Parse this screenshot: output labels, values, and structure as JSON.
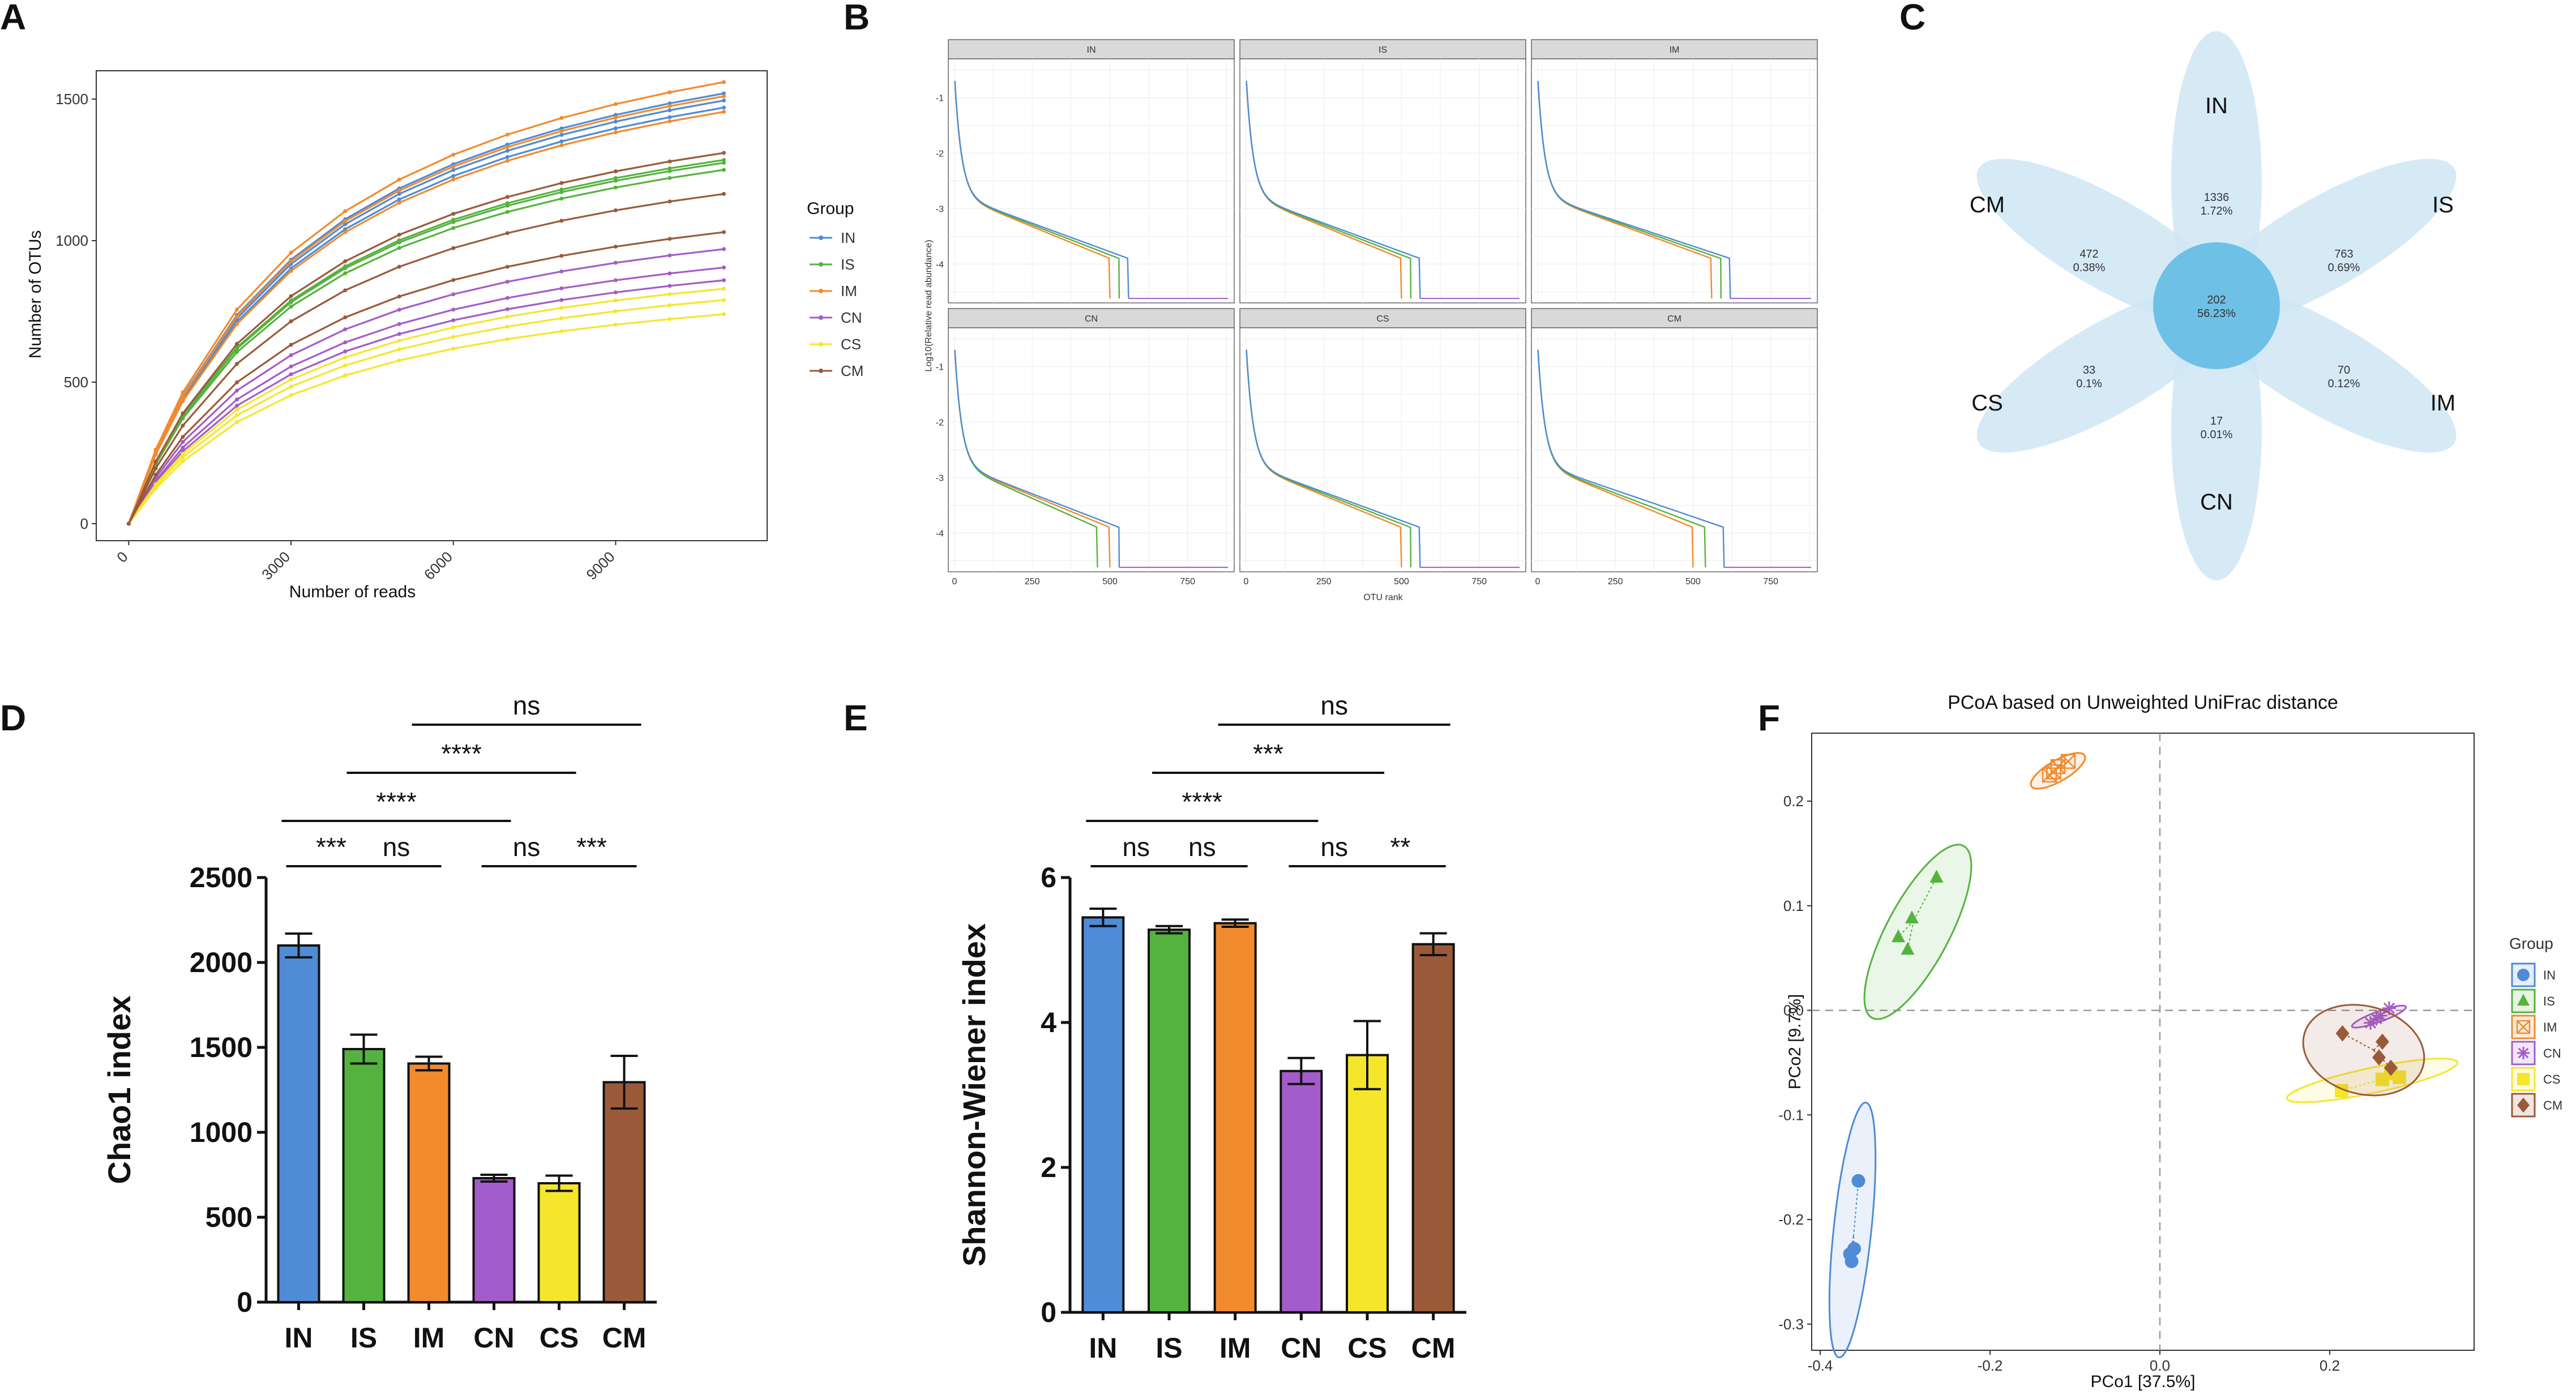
{
  "colors": {
    "IN": "#4F8BD6",
    "IS": "#54B33E",
    "IM": "#F28A2E",
    "CN": "#A35CC9",
    "CS": "#F5E62C",
    "CM": "#9A5A3A"
  },
  "panels": {
    "a": "A",
    "b": "B",
    "c": "C",
    "d": "D",
    "e": "E",
    "f": "F"
  },
  "chart_data": [
    {
      "id": "A",
      "type": "line",
      "xlabel": "Number of reads",
      "ylabel": "Number of OTUs",
      "xlim": [
        -600,
        11800
      ],
      "ylim": [
        -60,
        1600
      ],
      "x_ticks": [
        0,
        3000,
        6000,
        9000
      ],
      "y_ticks": [
        0,
        500,
        1000,
        1500
      ],
      "legend_title": "Group",
      "legend": [
        "IN",
        "IS",
        "IM",
        "CN",
        "CS",
        "CM"
      ],
      "x": [
        0,
        500,
        1000,
        2000,
        3000,
        4000,
        5000,
        6000,
        7000,
        8000,
        9000,
        10000,
        11000
      ],
      "series": [
        {
          "group": "IN",
          "final": 1470
        },
        {
          "group": "IN",
          "final": 1495
        },
        {
          "group": "IN",
          "final": 1520
        },
        {
          "group": "IS",
          "final": 1250
        },
        {
          "group": "IS",
          "final": 1275
        },
        {
          "group": "IS",
          "final": 1285
        },
        {
          "group": "IM",
          "final": 1455
        },
        {
          "group": "IM",
          "final": 1510
        },
        {
          "group": "IM",
          "final": 1560
        },
        {
          "group": "CN",
          "final": 860
        },
        {
          "group": "CN",
          "final": 905
        },
        {
          "group": "CN",
          "final": 970
        },
        {
          "group": "CS",
          "final": 740
        },
        {
          "group": "CS",
          "final": 790
        },
        {
          "group": "CS",
          "final": 830
        },
        {
          "group": "CM",
          "final": 1030
        },
        {
          "group": "CM",
          "final": 1165
        },
        {
          "group": "CM",
          "final": 1310
        }
      ]
    },
    {
      "id": "B",
      "type": "line",
      "xlabel": "OTU rank",
      "ylabel": "Log10(Relative read abundance)",
      "xlim": [
        -20,
        900
      ],
      "ylim": [
        -4.7,
        -0.3
      ],
      "x_ticks": [
        0,
        250,
        500,
        750
      ],
      "y_ticks": [
        -1,
        -2,
        -3,
        -4
      ],
      "facets": [
        {
          "label": "IN",
          "ends": [
            500,
            530,
            560
          ]
        },
        {
          "label": "IS",
          "ends": [
            500,
            530,
            560
          ]
        },
        {
          "label": "IM",
          "ends": [
            560,
            590,
            620
          ]
        },
        {
          "label": "CN",
          "ends": [
            500,
            460,
            530
          ]
        },
        {
          "label": "CS",
          "ends": [
            500,
            530,
            560
          ]
        },
        {
          "label": "CM",
          "ends": [
            500,
            540,
            600
          ]
        }
      ],
      "line_colors": [
        "#F28A2E",
        "#54B33E",
        "#4F8BD6",
        "#A35CC9"
      ]
    },
    {
      "id": "C",
      "type": "diagram",
      "center": {
        "count": "202",
        "pct": "56.23%"
      },
      "petals": [
        {
          "name": "IN",
          "count": "1336",
          "pct": "1.72%"
        },
        {
          "name": "IS",
          "count": "763",
          "pct": "0.69%"
        },
        {
          "name": "IM",
          "count": "70",
          "pct": "0.12%"
        },
        {
          "name": "CN",
          "count": "17",
          "pct": "0.01%"
        },
        {
          "name": "CS",
          "count": "33",
          "pct": "0.1%"
        },
        {
          "name": "CM",
          "count": "472",
          "pct": "0.38%"
        }
      ]
    },
    {
      "id": "D",
      "type": "bar",
      "ylabel": "Chao1 index",
      "categories": [
        "IN",
        "IS",
        "IM",
        "CN",
        "CS",
        "CM"
      ],
      "values": [
        2100,
        1490,
        1405,
        730,
        700,
        1295
      ],
      "errors": [
        70,
        85,
        40,
        20,
        45,
        155
      ],
      "ylim": [
        0,
        2500
      ],
      "y_ticks": [
        0,
        500,
        1000,
        1500,
        2000,
        2500
      ],
      "comparisons": [
        {
          "from": 0,
          "to": 1,
          "label": "***"
        },
        {
          "from": 1,
          "to": 2,
          "label": "ns"
        },
        {
          "from": 3,
          "to": 4,
          "label": "ns"
        },
        {
          "from": 4,
          "to": 5,
          "label": "***"
        },
        {
          "from": 0,
          "to": 3,
          "label": "****"
        },
        {
          "from": 1,
          "to": 4,
          "label": "****"
        },
        {
          "from": 2,
          "to": 5,
          "label": "ns"
        }
      ]
    },
    {
      "id": "E",
      "type": "bar",
      "ylabel": "Shannon-Wiener index",
      "categories": [
        "IN",
        "IS",
        "IM",
        "CN",
        "CS",
        "CM"
      ],
      "values": [
        5.45,
        5.28,
        5.37,
        3.33,
        3.55,
        5.08
      ],
      "errors": [
        0.12,
        0.05,
        0.05,
        0.18,
        0.47,
        0.15
      ],
      "ylim": [
        0,
        6
      ],
      "y_ticks": [
        0,
        2,
        4,
        6
      ],
      "comparisons": [
        {
          "from": 0,
          "to": 1,
          "label": "ns"
        },
        {
          "from": 1,
          "to": 2,
          "label": "ns"
        },
        {
          "from": 3,
          "to": 4,
          "label": "ns"
        },
        {
          "from": 4,
          "to": 5,
          "label": "**"
        },
        {
          "from": 0,
          "to": 3,
          "label": "****"
        },
        {
          "from": 1,
          "to": 4,
          "label": "***"
        },
        {
          "from": 2,
          "to": 5,
          "label": "ns"
        }
      ]
    },
    {
      "id": "F",
      "type": "scatter",
      "title": "PCoA based on Unweighted UniFrac distance",
      "xlabel": "PCo1 [37.5%]",
      "ylabel": "PCo2 [9.7%]",
      "xlim": [
        -0.41,
        0.37
      ],
      "ylim": [
        -0.325,
        0.265
      ],
      "x_ticks": [
        -0.4,
        -0.2,
        0.0,
        0.2
      ],
      "y_ticks": [
        0.2,
        0.1,
        0.0,
        -0.1,
        -0.2,
        -0.3
      ],
      "x_tick_labels": [
        "-0.4",
        "-0.2",
        "0.0",
        "0.2"
      ],
      "y_tick_labels": [
        "0.2",
        "0.1",
        "0.0",
        "-0.1",
        "-0.2",
        "-0.3"
      ],
      "legend_title": "Group",
      "legend": [
        "IN",
        "IS",
        "IM",
        "CN",
        "CS",
        "CM"
      ],
      "groups": [
        {
          "name": "IN",
          "marker": "circle",
          "points": [
            [
              -0.355,
              -0.163
            ],
            [
              -0.36,
              -0.228
            ],
            [
              -0.365,
              -0.233
            ],
            [
              -0.363,
              -0.24
            ]
          ],
          "ellipse": {
            "cx": -0.362,
            "cy": -0.21,
            "rx": 0.125,
            "ry": 0.018,
            "angle": 84
          }
        },
        {
          "name": "IS",
          "marker": "triangle",
          "points": [
            [
              -0.263,
              0.127
            ],
            [
              -0.292,
              0.088
            ],
            [
              -0.308,
              0.07
            ],
            [
              -0.297,
              0.058
            ]
          ],
          "ellipse": {
            "cx": -0.285,
            "cy": 0.075,
            "rx": 0.095,
            "ry": 0.03,
            "angle": 62
          }
        },
        {
          "name": "IM",
          "marker": "boxx",
          "points": [
            [
              -0.12,
              0.233
            ],
            [
              -0.13,
              0.225
            ],
            [
              -0.108,
              0.238
            ],
            [
              -0.125,
              0.228
            ]
          ],
          "ellipse": {
            "cx": -0.12,
            "cy": 0.229,
            "rx": 0.03,
            "ry": 0.01,
            "angle": 30
          }
        },
        {
          "name": "CN",
          "marker": "star",
          "points": [
            [
              0.26,
              -0.005
            ],
            [
              0.248,
              -0.012
            ],
            [
              0.27,
              0.002
            ],
            [
              0.255,
              -0.008
            ]
          ],
          "ellipse": {
            "cx": 0.258,
            "cy": -0.006,
            "rx": 0.028,
            "ry": 0.005,
            "angle": 20
          }
        },
        {
          "name": "CS",
          "marker": "square",
          "points": [
            [
              0.214,
              -0.077
            ],
            [
              0.262,
              -0.066
            ],
            [
              0.272,
              -0.06
            ],
            [
              0.282,
              -0.064
            ]
          ],
          "ellipse": {
            "cx": 0.25,
            "cy": -0.067,
            "rx": 0.085,
            "ry": 0.012,
            "angle": 12
          }
        },
        {
          "name": "CM",
          "marker": "diamond",
          "points": [
            [
              0.215,
              -0.022
            ],
            [
              0.262,
              -0.03
            ],
            [
              0.272,
              -0.055
            ],
            [
              0.258,
              -0.045
            ]
          ],
          "ellipse": {
            "cx": 0.24,
            "cy": -0.038,
            "rx": 0.06,
            "ry": 0.042,
            "angle": -15
          }
        }
      ]
    }
  ]
}
